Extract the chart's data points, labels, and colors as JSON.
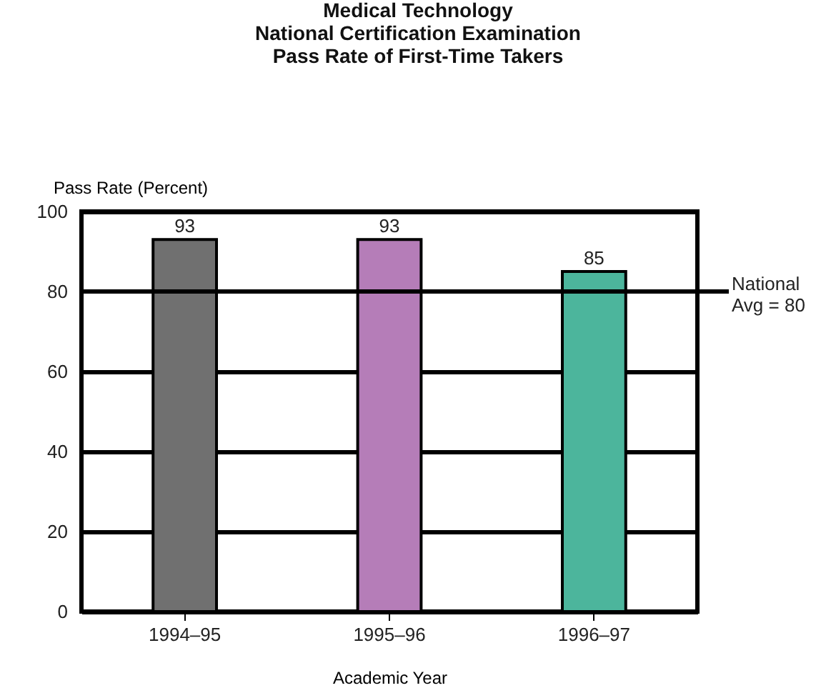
{
  "chart_data": {
    "type": "bar",
    "title": "Medical Technology\nNational Certification Examination\nPass Rate of First-Time Takers",
    "xlabel": "Academic Year",
    "ylabel": "Pass Rate (Percent)",
    "categories": [
      "1994–95",
      "1995–96",
      "1996–97"
    ],
    "values": [
      93,
      93,
      85
    ],
    "colors": [
      "#707070",
      "#b57db8",
      "#4cb59c"
    ],
    "data_labels": true,
    "ylim": [
      0,
      100
    ],
    "yticks": [
      0,
      20,
      40,
      60,
      80,
      100
    ],
    "grid": "y",
    "ref_lines": [
      {
        "axis": "y",
        "value": 80,
        "label": "National\nAvg = 80",
        "color": "#000000"
      }
    ]
  }
}
